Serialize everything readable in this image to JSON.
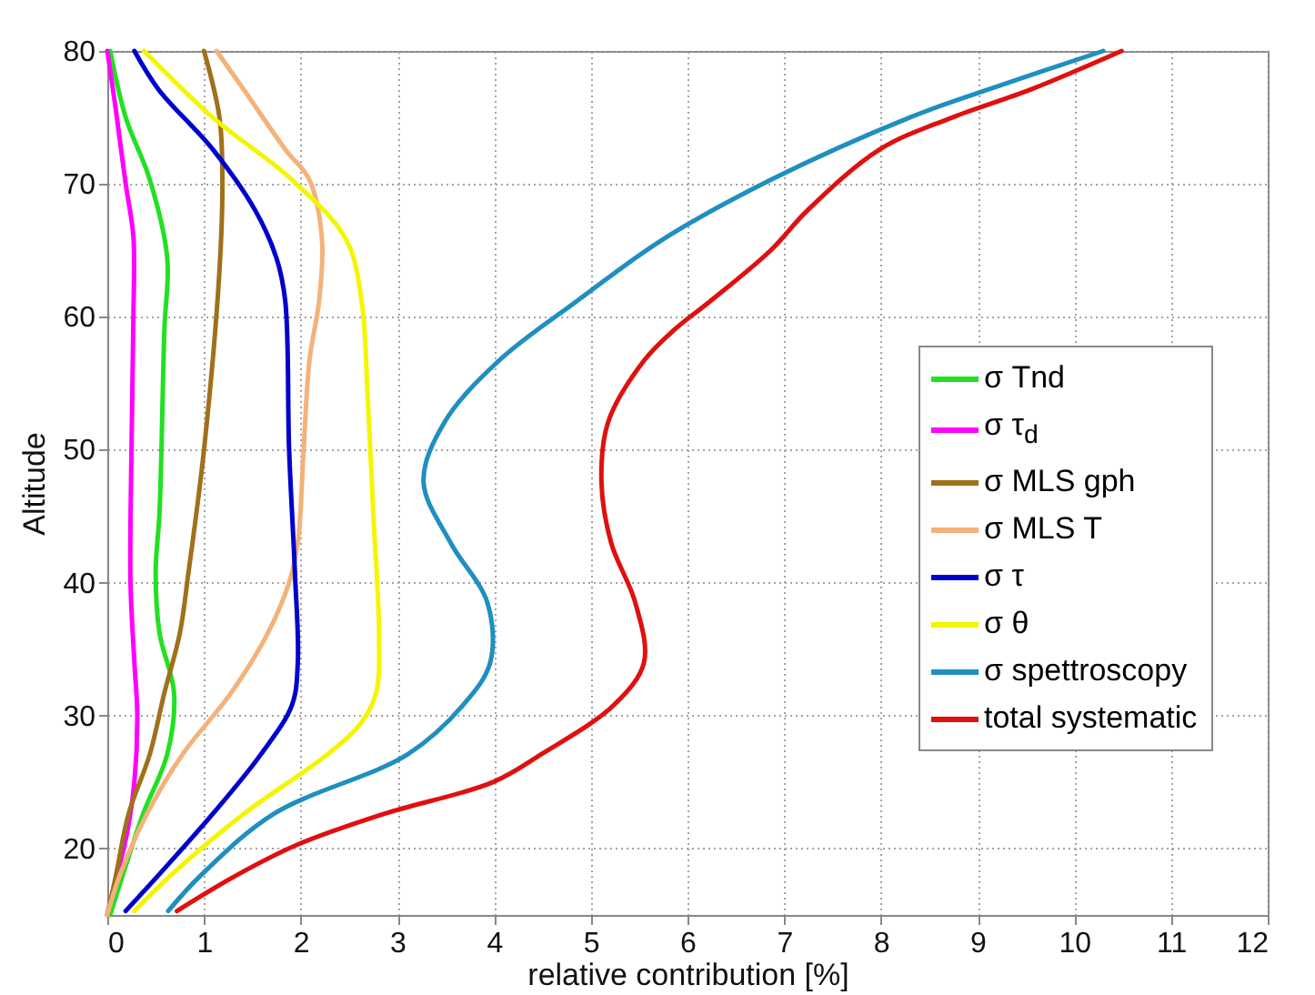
{
  "chart_data": {
    "type": "line",
    "xlabel": "relative contribution [%]",
    "ylabel": "Altitude",
    "xlim": [
      0,
      12
    ],
    "xticks": [
      0,
      1,
      2,
      3,
      4,
      5,
      6,
      7,
      8,
      9,
      10,
      11,
      12
    ],
    "ylim": [
      15,
      80
    ],
    "yticks": [
      20,
      30,
      40,
      50,
      60,
      70,
      80
    ],
    "grid": true,
    "legend": "right",
    "line_style": "solid",
    "marker": "none",
    "series": [
      {
        "name": "σ Tnd",
        "color": "#22e022",
        "x": [
          0.03,
          0.19,
          0.44,
          0.62,
          0.59,
          0.54,
          0.5,
          0.54,
          0.69,
          0.62,
          0.37,
          0.16,
          0.03
        ],
        "values": [
          80,
          75,
          70.3,
          64.4,
          59,
          45.3,
          40.8,
          36.2,
          31.7,
          27.1,
          22.6,
          18,
          15
        ]
      },
      {
        "name": "σ τ$_{d}$",
        "color": "#ff00ff",
        "x": [
          0,
          0.08,
          0.19,
          0.27,
          0.27,
          0.25,
          0.24,
          0.28,
          0.31,
          0.28,
          0.2,
          0.1,
          0
        ],
        "values": [
          80,
          76,
          70,
          66,
          60,
          50,
          40,
          34,
          30,
          25,
          21,
          18,
          15
        ]
      },
      {
        "name": "σ MLS gph",
        "color": "#a0701a",
        "x": [
          1.0,
          1.16,
          1.19,
          1.16,
          1.0,
          0.84,
          0.75,
          0.59,
          0.44,
          0.22,
          0.09,
          0
        ],
        "values": [
          80,
          75,
          70.3,
          63.5,
          50,
          40.8,
          36.2,
          31.7,
          27.1,
          22.6,
          18,
          15
        ]
      },
      {
        "name": "σ MLS T",
        "color": "#f4b27a",
        "x": [
          1.13,
          1.41,
          1.84,
          2.09,
          2.22,
          2.19,
          2.09,
          2.03,
          1.97,
          1.88,
          1.66,
          1.28,
          0.78,
          0.41,
          0.13,
          0
        ],
        "values": [
          80,
          77.1,
          72.6,
          70.3,
          65.8,
          61.2,
          56.7,
          50,
          43,
          40,
          36.2,
          31.7,
          27.1,
          22.6,
          18,
          15
        ]
      },
      {
        "name": "σ τ",
        "color": "#0000cc",
        "x": [
          0.28,
          0.53,
          1.09,
          1.53,
          1.75,
          1.84,
          1.88,
          1.94,
          1.97,
          1.91,
          1.59,
          1.09,
          0.53,
          0.19
        ],
        "values": [
          80,
          77.1,
          72.6,
          68,
          64.4,
          61.2,
          50,
          40.8,
          34,
          30.8,
          27.1,
          22.6,
          18,
          15.3
        ]
      },
      {
        "name": "σ θ",
        "color": "#f5f500",
        "x": [
          0.38,
          1.09,
          1.91,
          2.47,
          2.63,
          2.69,
          2.75,
          2.81,
          2.78,
          2.63,
          2.28,
          1.41,
          0.66,
          0.28
        ],
        "values": [
          80,
          75,
          70.3,
          65.8,
          61.2,
          54.4,
          45.3,
          36.2,
          31.7,
          29.5,
          27.1,
          22.6,
          18,
          15.3
        ]
      },
      {
        "name": "σ spettroscopy",
        "color": "#1f8fbf",
        "x": [
          10.3,
          9.11,
          8.3,
          6.86,
          5.74,
          4.86,
          4.05,
          3.49,
          3.27,
          3.55,
          3.93,
          3.96,
          3.68,
          3.11,
          1.72,
          0.97,
          0.63
        ],
        "values": [
          80,
          77.1,
          75,
          70.3,
          65.8,
          61.2,
          56.7,
          52.1,
          47.6,
          43,
          38.5,
          34,
          30.8,
          27.1,
          22.6,
          18,
          15.3
        ]
      },
      {
        "name": "total systematic",
        "color": "#e01010",
        "x": [
          10.49,
          9.55,
          8.74,
          7.99,
          7.24,
          6.86,
          6.24,
          5.86,
          5.55,
          5.18,
          5.11,
          5.21,
          5.46,
          5.55,
          5.24,
          4.49,
          3.99,
          2.86,
          1.97,
          1.34,
          0.72
        ],
        "values": [
          80,
          77.1,
          75,
          72.6,
          68,
          65,
          61.2,
          59,
          56.7,
          52.1,
          47.6,
          43,
          38.5,
          34,
          30.8,
          27.1,
          25,
          22.6,
          20.3,
          18,
          15.3
        ]
      }
    ]
  }
}
